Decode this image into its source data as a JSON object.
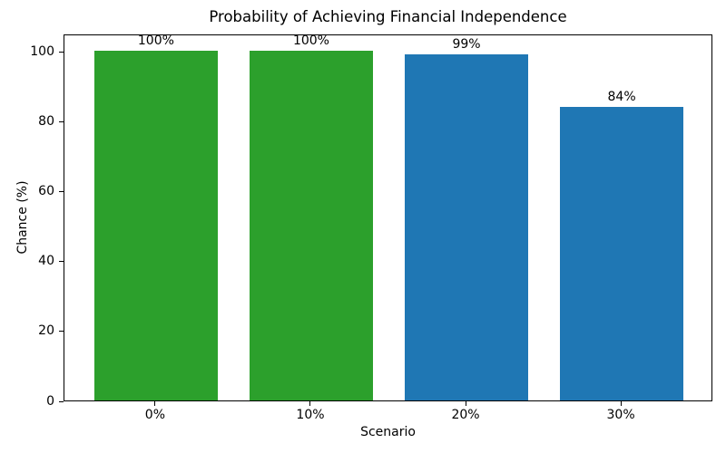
{
  "chart_data": {
    "type": "bar",
    "title": "Probability of Achieving Financial Independence",
    "xlabel": "Scenario",
    "ylabel": "Chance (%)",
    "categories": [
      "0%",
      "10%",
      "20%",
      "30%"
    ],
    "values": [
      100,
      100,
      99,
      84
    ],
    "bar_labels": [
      "100%",
      "100%",
      "99%",
      "84%"
    ],
    "bar_colors": [
      "#2ca02c",
      "#2ca02c",
      "#1f77b4",
      "#1f77b4"
    ],
    "ylim": [
      0,
      105
    ],
    "yticks": [
      0,
      20,
      40,
      60,
      80,
      100
    ],
    "grid": false,
    "legend_position": "none",
    "plot_background": "#ffffff",
    "axis_color": "#000000"
  }
}
